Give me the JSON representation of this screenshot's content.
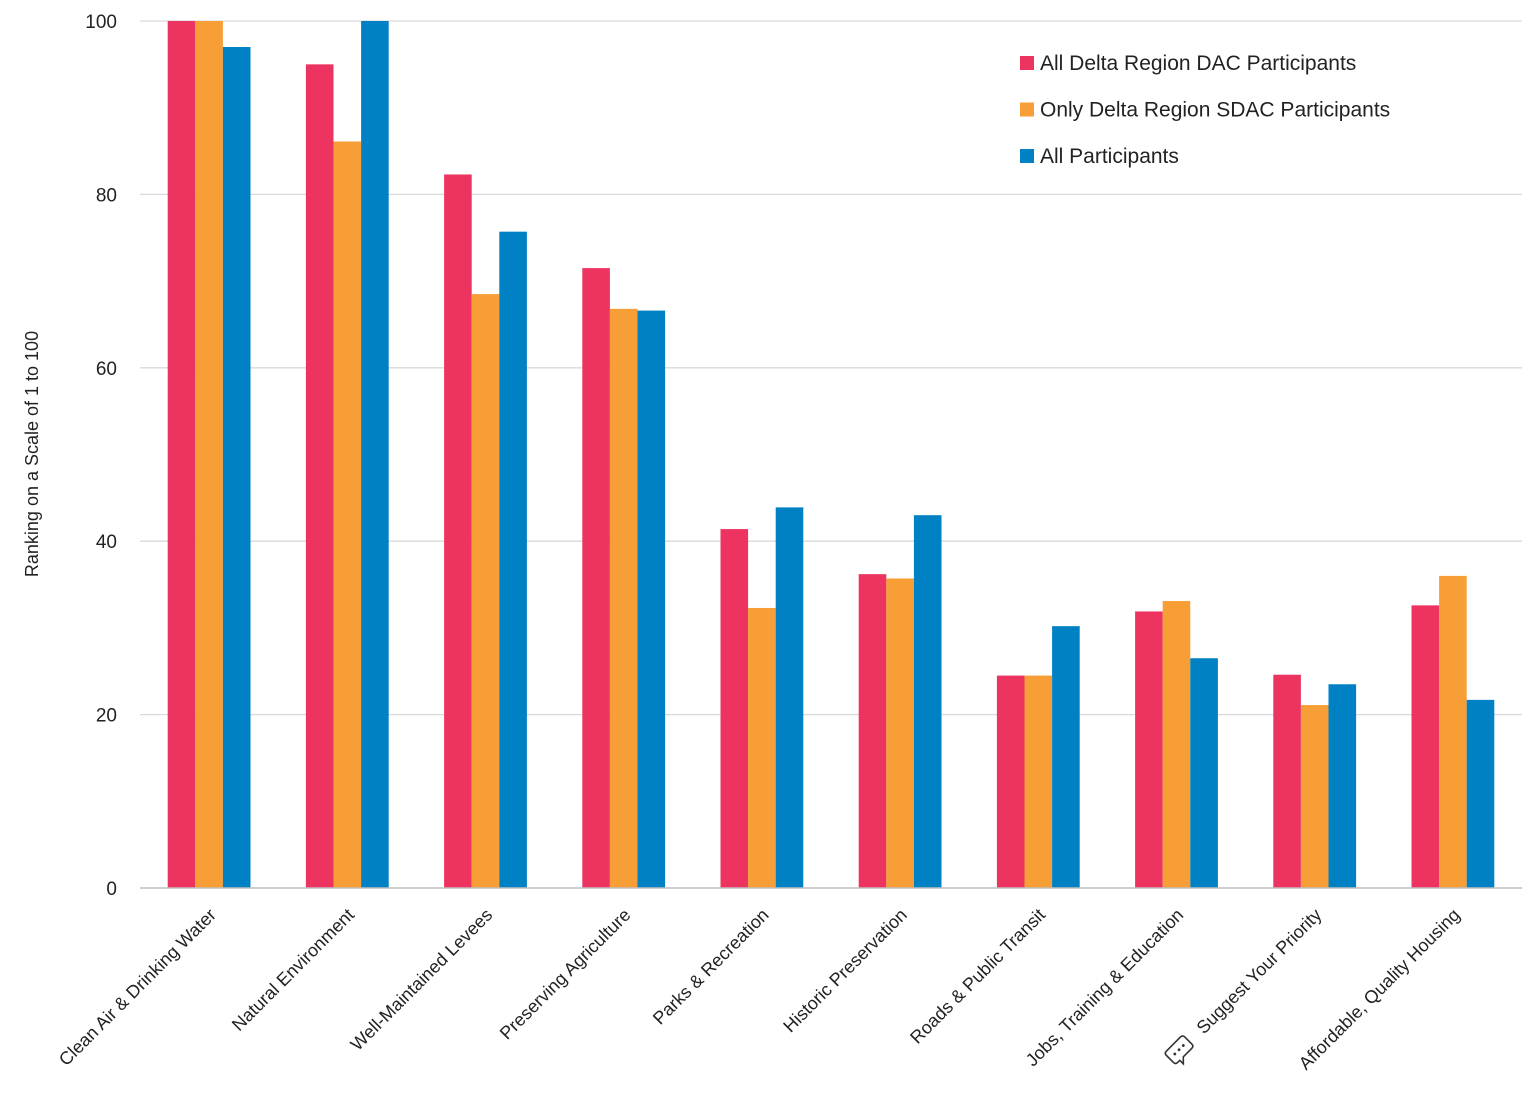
{
  "chart_data": {
    "type": "bar",
    "ylabel": "Ranking on a Scale of 1 to 100",
    "xlabel": "",
    "ylim": [
      0,
      100
    ],
    "yticks": [
      0,
      20,
      40,
      60,
      80,
      100
    ],
    "grid": true,
    "legend_position": "top-right",
    "categories": [
      "Clean Air & Drinking Water",
      "Natural Environment",
      "Well-Maintained Levees",
      "Preserving Agriculture",
      "Parks & Recreation",
      "Historic Preservation",
      "Roads & Public Transit",
      "Jobs, Training & Education",
      "Suggest Your Priority",
      "Affordable, Quality Housing"
    ],
    "category_icons": [
      "",
      "",
      "",
      "",
      "",
      "",
      "",
      "",
      "chat-bubble-icon",
      ""
    ],
    "series": [
      {
        "name": "All Delta Region DAC Participants",
        "color": "#ED3461",
        "values": [
          100,
          95,
          82.3,
          71.5,
          41.4,
          36.2,
          24.5,
          31.9,
          24.6,
          32.6
        ]
      },
      {
        "name": "Only Delta Region SDAC Participants",
        "color": "#F89E36",
        "values": [
          100,
          86.1,
          68.5,
          66.8,
          32.3,
          35.7,
          24.5,
          33.1,
          21.1,
          36.0
        ]
      },
      {
        "name": "All Participants",
        "color": "#0081C4",
        "values": [
          97.0,
          100,
          75.7,
          66.6,
          43.9,
          43.0,
          30.2,
          26.5,
          23.5,
          21.7
        ]
      }
    ]
  }
}
